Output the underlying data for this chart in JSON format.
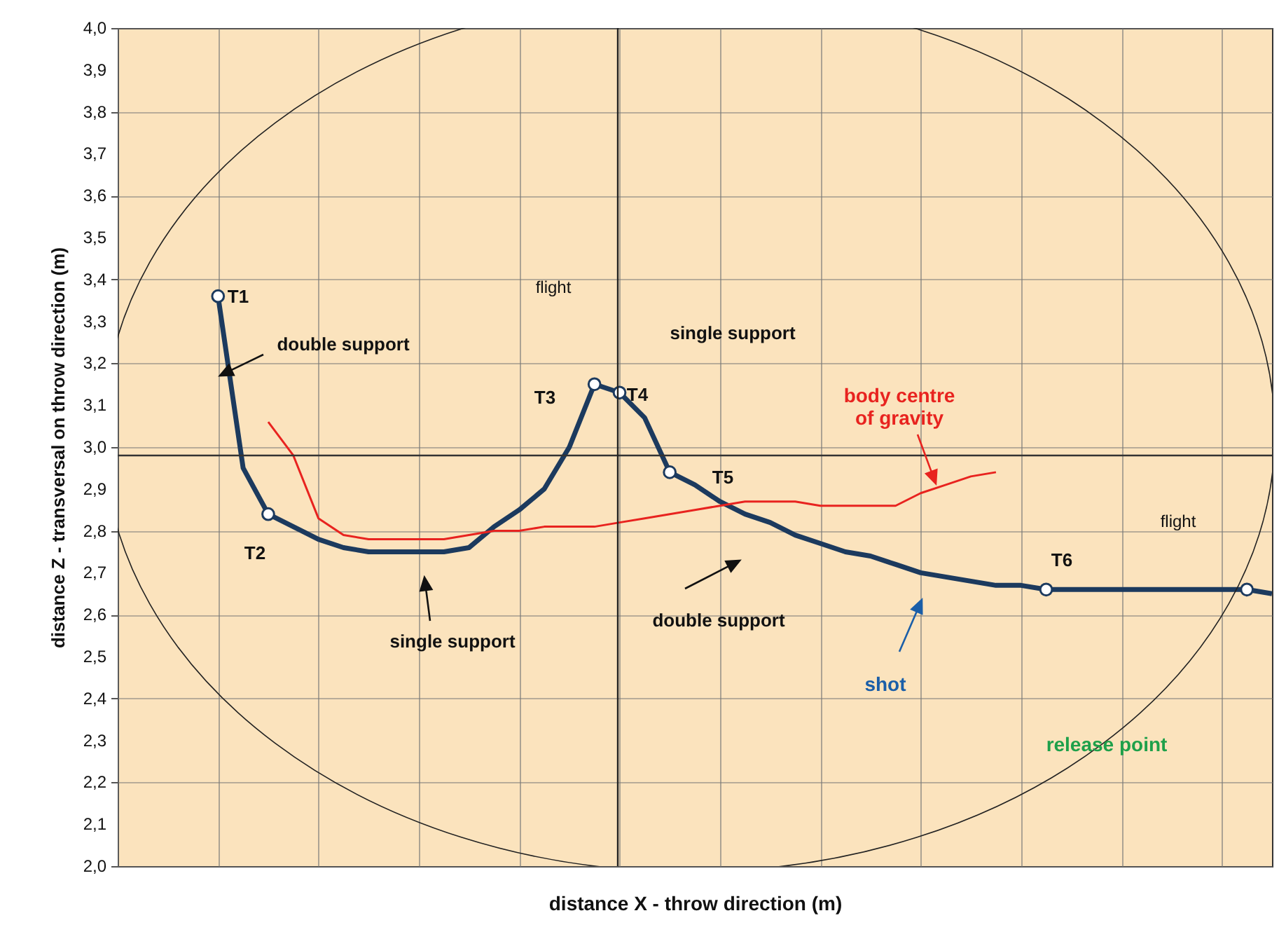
{
  "chart_data": {
    "type": "line",
    "xlabel": "distance X - throw direction (m)",
    "ylabel": "distance Z - transversal on throw direction (m)",
    "categories": [
      null,
      null,
      null,
      null,
      null,
      null,
      null,
      null,
      null,
      null,
      null,
      null,
      null,
      null,
      null,
      null,
      null,
      null,
      null,
      null,
      null,
      null,
      null,
      null,
      null,
      null,
      null,
      null,
      null,
      null,
      null,
      null,
      null,
      null,
      null,
      null,
      null,
      null,
      null,
      null,
      null,
      null,
      null,
      null,
      null,
      null,
      null
    ],
    "series": [
      {
        "color": "#1c3a5e",
        "values": [
          null,
          null,
          null,
          null,
          3.36,
          2.95,
          2.84,
          2.81,
          2.78,
          2.76,
          2.75,
          2.75,
          2.75,
          2.75,
          2.76,
          2.81,
          2.85,
          2.9,
          3.0,
          3.15,
          3.13,
          3.07,
          2.94,
          2.91,
          2.87,
          2.84,
          2.82,
          2.79,
          2.77,
          2.75,
          2.74,
          2.72,
          2.7,
          2.69,
          2.68,
          2.67,
          2.67,
          2.66,
          2.66,
          2.66,
          2.66,
          2.66,
          2.66,
          2.66,
          2.66,
          2.66,
          2.65
        ]
      },
      {
        "color": "#e8231f",
        "values": [
          null,
          null,
          null,
          null,
          null,
          null,
          3.06,
          2.98,
          2.83,
          2.79,
          2.78,
          2.78,
          2.78,
          2.78,
          2.79,
          2.8,
          2.8,
          2.81,
          2.81,
          2.81,
          2.82,
          2.83,
          2.84,
          2.85,
          2.86,
          2.87,
          2.87,
          2.87,
          2.86,
          2.86,
          2.86,
          2.86,
          2.89,
          2.91,
          2.93,
          2.94,
          null,
          null,
          null,
          null,
          null,
          null,
          null,
          null,
          null,
          null,
          null
        ]
      },
      {
        "type": "scatter",
        "marker": "circle",
        "color": "#ffffff",
        "values": [
          null,
          null,
          null,
          null,
          3.36,
          null,
          2.84,
          null,
          null,
          null,
          null,
          null,
          null,
          null,
          null,
          null,
          null,
          null,
          null,
          3.15,
          3.13,
          null,
          2.94,
          null,
          null,
          null,
          null,
          null,
          null,
          null,
          null,
          null,
          null,
          null,
          null,
          null,
          null,
          2.66,
          null,
          null,
          null,
          null,
          null,
          null,
          null,
          2.66,
          null
        ]
      }
    ],
    "ylim": [
      2.0,
      4.0
    ],
    "yticks": [
      {
        "value": 2.0,
        "label": "2,0"
      },
      {
        "value": 2.1,
        "label": "2,1"
      },
      {
        "value": 2.2,
        "label": "2,2"
      },
      {
        "value": 2.3,
        "label": "2,3"
      },
      {
        "value": 2.4,
        "label": "2,4"
      },
      {
        "value": 2.5,
        "label": "2,5"
      },
      {
        "value": 2.6,
        "label": "2,6"
      },
      {
        "value": 2.7,
        "label": "2,7"
      },
      {
        "value": 2.8,
        "label": "2,8"
      },
      {
        "value": 2.9,
        "label": "2,9"
      },
      {
        "value": 3.0,
        "label": "3,0"
      },
      {
        "value": 3.1,
        "label": "3,1"
      },
      {
        "value": 3.2,
        "label": "3,2"
      },
      {
        "value": 3.3,
        "label": "3,3"
      },
      {
        "value": 3.4,
        "label": "3,4"
      },
      {
        "value": 3.5,
        "label": "3,5"
      },
      {
        "value": 3.6,
        "label": "3,6"
      },
      {
        "value": 3.7,
        "label": "3,7"
      },
      {
        "value": 3.8,
        "label": "3,8"
      },
      {
        "value": 3.9,
        "label": "3,9"
      },
      {
        "value": 4.0,
        "label": "4,0"
      }
    ],
    "ref_lines": [
      {
        "axis": "y",
        "value": 2.98,
        "color": "#333333"
      }
    ],
    "grid": true,
    "marker": "none",
    "line_style": "solid",
    "tick_labels": "y",
    "annotations": [
      "T1",
      "double support",
      "T2",
      "single support",
      "T3",
      "T4",
      "flight",
      "single support",
      "T5",
      "body centre\nof gravity",
      "double support",
      "shot",
      "T6",
      "flight",
      "release point"
    ]
  }
}
